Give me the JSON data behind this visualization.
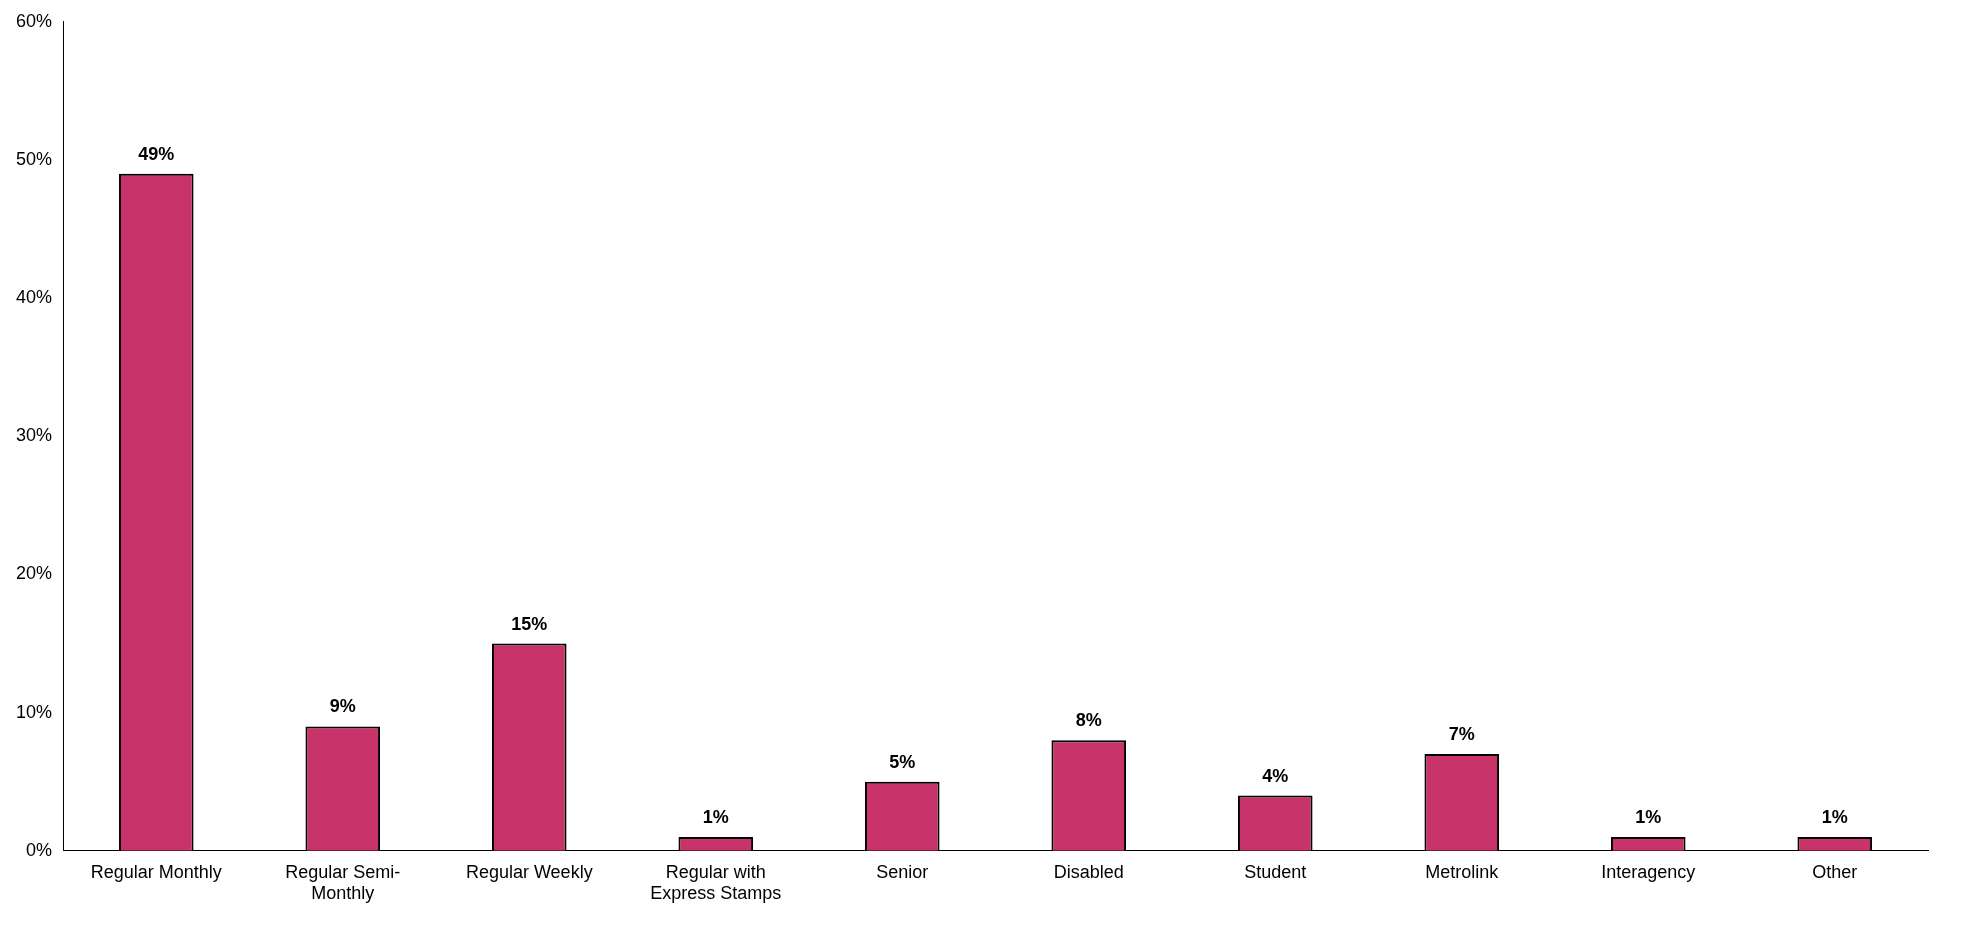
{
  "chart_data": {
    "type": "bar",
    "categories": [
      "Regular Monthly",
      "Regular Semi-Monthly",
      "Regular Weekly",
      "Regular with Express Stamps",
      "Senior",
      "Disabled",
      "Student",
      "Metrolink",
      "Interagency",
      "Other"
    ],
    "values": [
      49,
      9,
      15,
      1,
      5,
      8,
      4,
      7,
      1,
      1
    ],
    "value_labels": [
      "49%",
      "9%",
      "15%",
      "1%",
      "5%",
      "8%",
      "4%",
      "7%",
      "1%",
      "1%"
    ],
    "color": "#c8336a",
    "ylim": [
      0,
      60
    ],
    "yticks": [
      {
        "value": 0,
        "label": "0%"
      },
      {
        "value": 10,
        "label": "10%"
      },
      {
        "value": 20,
        "label": "20%"
      },
      {
        "value": 30,
        "label": "30%"
      },
      {
        "value": 40,
        "label": "40%"
      },
      {
        "value": 50,
        "label": "50%"
      },
      {
        "value": 60,
        "label": "60%"
      }
    ],
    "grid": false,
    "legend": false
  }
}
